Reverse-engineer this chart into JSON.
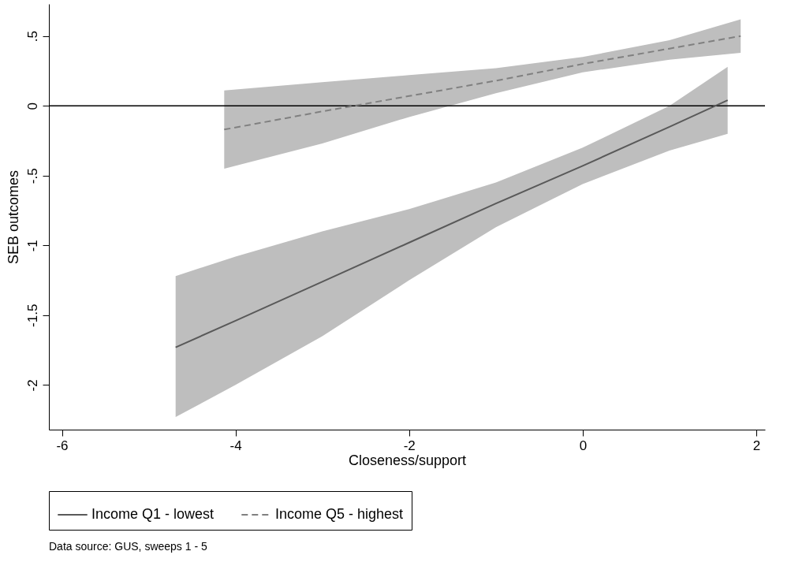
{
  "chart_data": {
    "type": "line",
    "xlabel": "Closeness/support",
    "ylabel": "SEB outcomes",
    "xlim": [
      -6.15,
      2.1
    ],
    "xticks": [
      -6,
      -4,
      -2,
      0,
      2
    ],
    "ylim": [
      -2.32,
      0.73
    ],
    "yticks": [
      {
        "value": 0.5,
        "label": ".5"
      },
      0,
      {
        "value": -0.5,
        "label": "-.5"
      },
      -1,
      -1.5,
      -2
    ],
    "grid": false,
    "legend": "bottom",
    "ref_lines": [
      {
        "axis": "y",
        "value": 0,
        "color": "#000000"
      }
    ],
    "annotations": [
      "Data source:  GUS, sweeps 1 - 5"
    ],
    "series": [
      {
        "name": "Income Q1 - lowest",
        "color": "#595959",
        "line_style": "solid",
        "x": [
          -4.69,
          -4,
          -3,
          -2,
          -1,
          0,
          1,
          1.67
        ],
        "values": [
          -1.73,
          -1.54,
          -1.26,
          -0.98,
          -0.7,
          -0.43,
          -0.15,
          0.04
        ],
        "lower": [
          -2.23,
          -2.0,
          -1.65,
          -1.25,
          -0.87,
          -0.56,
          -0.32,
          -0.2
        ],
        "upper": [
          -1.22,
          -1.08,
          -0.9,
          -0.74,
          -0.55,
          -0.3,
          0.0,
          0.28
        ]
      },
      {
        "name": "Income Q5 - highest",
        "color": "#808080",
        "line_style": "dashed",
        "x": [
          -4.13,
          -3,
          -2,
          -1,
          0,
          1,
          1.82
        ],
        "values": [
          -0.17,
          -0.04,
          0.07,
          0.18,
          0.3,
          0.41,
          0.5
        ],
        "lower": [
          -0.45,
          -0.27,
          -0.08,
          0.09,
          0.24,
          0.33,
          0.38
        ],
        "upper": [
          0.11,
          0.17,
          0.22,
          0.27,
          0.35,
          0.47,
          0.62
        ]
      }
    ]
  }
}
